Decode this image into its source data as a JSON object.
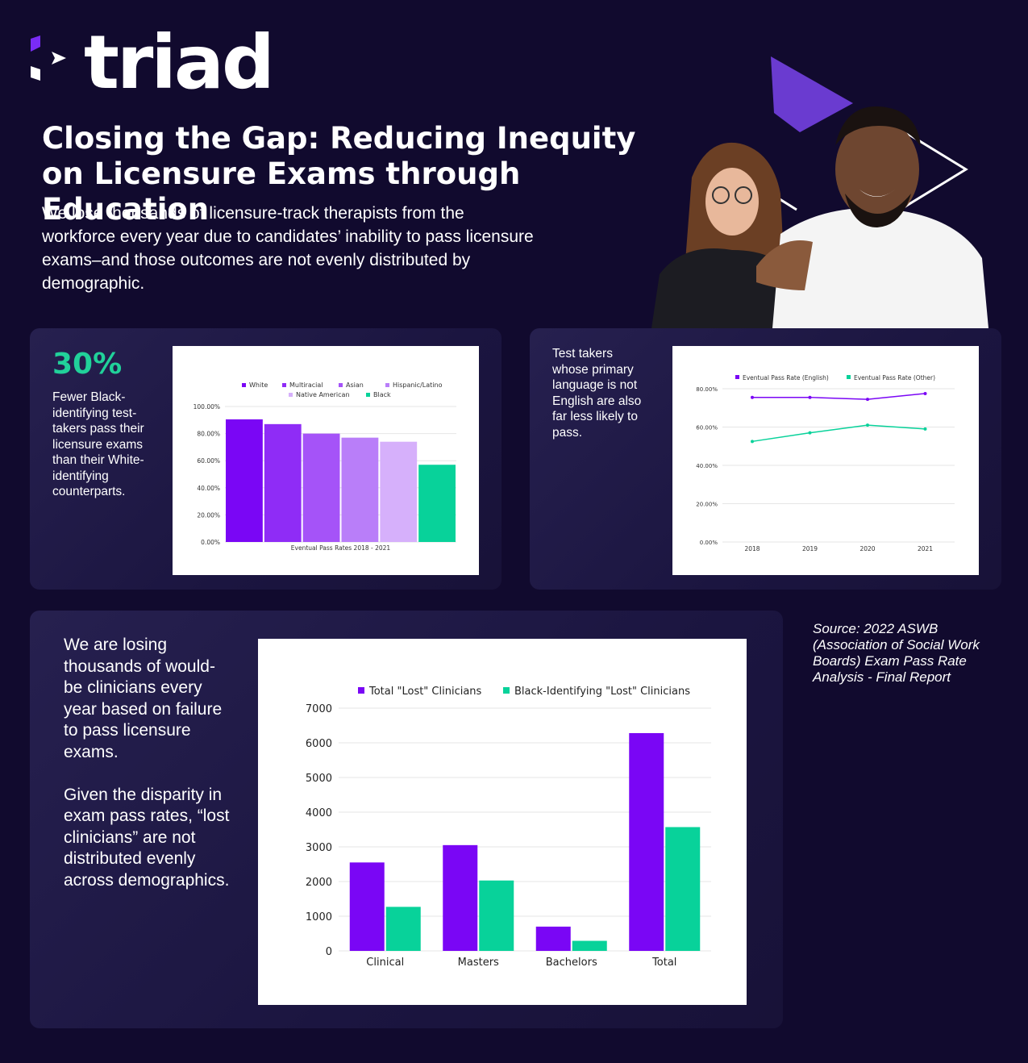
{
  "brand": {
    "name": "triad",
    "colors": {
      "accent": "#7a2cf5",
      "green": "#21d19a",
      "background": "#110a2e"
    }
  },
  "headline": "Closing the Gap: Reducing Inequity on Licensure Exams through Education",
  "intro": "We lose thousands of licensure-track therapists from the workforce every year due to candidates’ inability to pass licensure exams–and those outcomes are not evenly distributed by demographic.",
  "card1": {
    "stat": "30%",
    "description": "Fewer Black-identifying test-takers pass their licensure exams than their White-identifying counterparts."
  },
  "card2": {
    "description": "Test takers whose primary language is not English are also far less likely to pass."
  },
  "card3": {
    "paragraph1": "We are losing thousands of would-be clinicians every year based on failure to pass licensure exams.",
    "paragraph2": "Given the disparity in exam pass rates, “lost clinicians” are not distributed evenly across demographics."
  },
  "source": "Source: 2022 ASWB (Association of Social Work Boards) Exam Pass Rate Analysis - Final Report",
  "chart_data": [
    {
      "id": "pass-rates-by-race",
      "type": "bar",
      "title": "",
      "xlabel": "Eventual Pass Rates 2018 - 2021",
      "ylabel": "",
      "ylim": [
        0,
        100
      ],
      "yticks": [
        "0.00%",
        "20.00%",
        "40.00%",
        "60.00%",
        "80.00%",
        "100.00%"
      ],
      "legend_position": "top",
      "series": [
        {
          "name": "White",
          "value": 90.5,
          "color": "#7a06f5"
        },
        {
          "name": "Multiracial",
          "value": 87,
          "color": "#8f2cf6"
        },
        {
          "name": "Asian",
          "value": 80,
          "color": "#a553f8"
        },
        {
          "name": "Hispanic/Latino",
          "value": 77,
          "color": "#b97ef9"
        },
        {
          "name": "Native American",
          "value": 74,
          "color": "#d6b0fb"
        },
        {
          "name": "Black",
          "value": 57,
          "color": "#08d29a"
        }
      ]
    },
    {
      "id": "pass-rates-by-language",
      "type": "line",
      "title": "",
      "xlabel": "",
      "ylabel": "",
      "ylim": [
        0,
        80
      ],
      "yticks": [
        "0.00%",
        "20.00%",
        "40.00%",
        "60.00%",
        "80.00%"
      ],
      "legend_position": "top",
      "categories": [
        "2018",
        "2019",
        "2020",
        "2021"
      ],
      "series": [
        {
          "name": "Eventual Pass Rate (English)",
          "values": [
            75.5,
            75.5,
            74.5,
            77.5
          ],
          "color": "#7a06f5"
        },
        {
          "name": "Eventual Pass Rate (Other)",
          "values": [
            52.5,
            57,
            61,
            59
          ],
          "color": "#08d29a"
        }
      ]
    },
    {
      "id": "lost-clinicians",
      "type": "bar",
      "title": "",
      "xlabel": "",
      "ylabel": "",
      "ylim": [
        0,
        7000
      ],
      "yticks": [
        "0",
        "1000",
        "2000",
        "3000",
        "4000",
        "5000",
        "6000",
        "7000"
      ],
      "legend_position": "top",
      "categories": [
        "Clinical",
        "Masters",
        "Bachelors",
        "Total"
      ],
      "series": [
        {
          "name": "Total \"Lost\" Clinicians",
          "values": [
            2550,
            3050,
            700,
            6280
          ],
          "color": "#7a06f5"
        },
        {
          "name": "Black-Identifying \"Lost\" Clinicians",
          "values": [
            1270,
            2030,
            290,
            3570
          ],
          "color": "#08d29a"
        }
      ]
    }
  ]
}
